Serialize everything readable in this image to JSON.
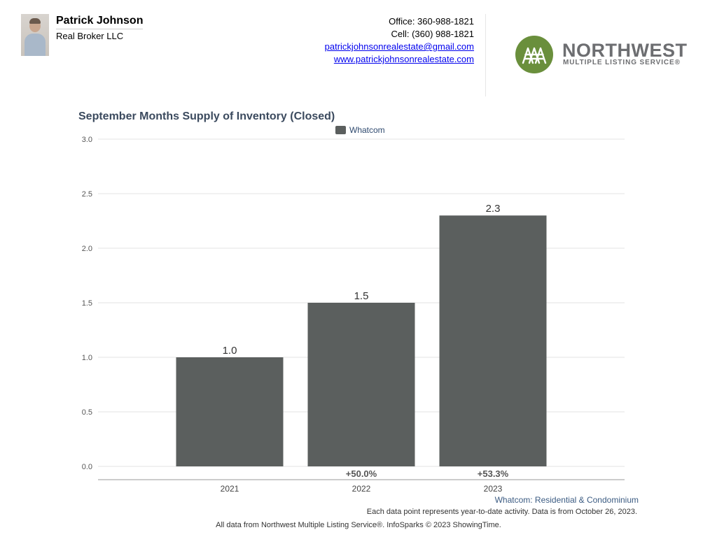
{
  "agent": {
    "name": "Patrick Johnson",
    "company": "Real Broker LLC",
    "office": "Office: 360-988-1821",
    "cell": "Cell: (360) 988-1821",
    "email": "patrickjohnsonrealestate@gmail.com",
    "website": "www.patrickjohnsonrealestate.com"
  },
  "logo": {
    "name": "NORTHWEST",
    "tagline": "MULTIPLE LISTING SERVICE®",
    "color": "#6a8f3c"
  },
  "colors": {
    "bar": "#5b5f5e",
    "title": "#3b4a5e",
    "legend": "#2f4a6f"
  },
  "chart_data": {
    "type": "bar",
    "title": "September Months Supply of Inventory (Closed)",
    "categories": [
      "2021",
      "2022",
      "2023"
    ],
    "series": [
      {
        "name": "Whatcom",
        "values": [
          1.0,
          1.5,
          2.3
        ]
      }
    ],
    "value_labels": [
      "1.0",
      "1.5",
      "2.3"
    ],
    "change_labels": [
      "",
      "+50.0%",
      "+53.3%"
    ],
    "ylim": [
      0,
      3.0
    ],
    "yticks": [
      "0.0",
      "0.5",
      "1.0",
      "1.5",
      "2.0",
      "2.5",
      "3.0"
    ],
    "grid": true,
    "legend_position": "top-center"
  },
  "footer": {
    "subtitle": "Whatcom: Residential & Condominium",
    "note": "Each data point represents year-to-date activity. Data is from October 26, 2023.",
    "source": "All data from Northwest Multiple Listing Service®. InfoSparks © 2023 ShowingTime."
  }
}
